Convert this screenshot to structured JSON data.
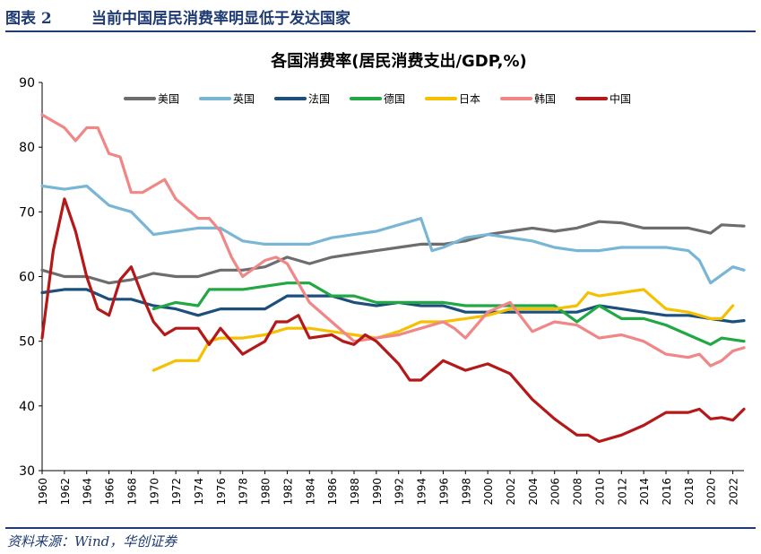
{
  "figure": {
    "label": "图表 2",
    "title": "当前中国居民消费率明显低于发达国家",
    "source": "资料来源：Wind，华创证券"
  },
  "chart_data": {
    "type": "line",
    "title": "各国消费率(居民消费支出/GDP,%)",
    "xlabel": "",
    "ylabel": "",
    "xlim": [
      1960,
      2023
    ],
    "ylim": [
      30,
      90
    ],
    "yticks": [
      30,
      40,
      50,
      60,
      70,
      80,
      90
    ],
    "xticks": [
      1960,
      1962,
      1964,
      1966,
      1968,
      1970,
      1972,
      1974,
      1976,
      1978,
      1980,
      1982,
      1984,
      1986,
      1988,
      1990,
      1992,
      1994,
      1996,
      1998,
      2000,
      2002,
      2004,
      2006,
      2008,
      2010,
      2012,
      2014,
      2016,
      2018,
      2020,
      2022
    ],
    "grid": false,
    "legend": "top",
    "series": [
      {
        "name": "美国",
        "color": "#6d6d6d",
        "x": [
          1960,
          1962,
          1964,
          1966,
          1968,
          1970,
          1972,
          1974,
          1976,
          1978,
          1980,
          1982,
          1984,
          1986,
          1988,
          1990,
          1992,
          1994,
          1996,
          1998,
          2000,
          2002,
          2004,
          2006,
          2008,
          2010,
          2012,
          2014,
          2016,
          2018,
          2020,
          2021,
          2023
        ],
        "y": [
          61,
          60,
          60,
          59,
          59.5,
          60.5,
          60,
          60,
          61,
          61,
          61.5,
          63,
          62,
          63,
          63.5,
          64,
          64.5,
          65,
          65,
          65.5,
          66.5,
          67,
          67.5,
          67,
          67.5,
          68.5,
          68.3,
          67.5,
          67.5,
          67.5,
          66.7,
          68,
          67.8
        ]
      },
      {
        "name": "英国",
        "color": "#79b6d6",
        "x": [
          1960,
          1962,
          1964,
          1966,
          1968,
          1970,
          1972,
          1974,
          1976,
          1978,
          1980,
          1982,
          1984,
          1986,
          1988,
          1990,
          1992,
          1994,
          1995,
          1996,
          1998,
          2000,
          2002,
          2004,
          2006,
          2008,
          2010,
          2012,
          2014,
          2016,
          2018,
          2019,
          2020,
          2022,
          2023
        ],
        "y": [
          74,
          73.5,
          74,
          71,
          70,
          66.5,
          67,
          67.5,
          67.5,
          65.5,
          65,
          65,
          65,
          66,
          66.5,
          67,
          68,
          69,
          64,
          64.5,
          66,
          66.5,
          66,
          65.5,
          64.5,
          64,
          64,
          64.5,
          64.5,
          64.5,
          64,
          62.5,
          59,
          61.5,
          61
        ]
      },
      {
        "name": "法国",
        "color": "#1c4f7c",
        "x": [
          1960,
          1962,
          1964,
          1966,
          1968,
          1970,
          1972,
          1974,
          1976,
          1978,
          1980,
          1982,
          1984,
          1986,
          1988,
          1990,
          1992,
          1994,
          1996,
          1998,
          2000,
          2002,
          2004,
          2006,
          2008,
          2010,
          2012,
          2014,
          2016,
          2018,
          2020,
          2022,
          2023
        ],
        "y": [
          57.5,
          58,
          58,
          56.5,
          56.5,
          55.5,
          55,
          54,
          55,
          55,
          55,
          57,
          57,
          57,
          56,
          55.5,
          56,
          55.5,
          55.5,
          54.5,
          54.5,
          54.5,
          54.5,
          54.5,
          54.5,
          55.5,
          55,
          54.5,
          54,
          54,
          53.5,
          53,
          53.2
        ]
      },
      {
        "name": "德国",
        "color": "#22a843",
        "x": [
          1970,
          1972,
          1974,
          1975,
          1976,
          1978,
          1980,
          1982,
          1984,
          1986,
          1988,
          1990,
          1992,
          1994,
          1996,
          1998,
          2000,
          2002,
          2004,
          2006,
          2008,
          2010,
          2012,
          2014,
          2016,
          2018,
          2020,
          2021,
          2023
        ],
        "y": [
          55,
          56,
          55.5,
          58,
          58,
          58,
          58.5,
          59,
          59,
          57,
          57,
          56,
          56,
          56,
          56,
          55.5,
          55.5,
          55.5,
          55.5,
          55.5,
          53,
          55.5,
          53.5,
          53.5,
          52.5,
          51,
          49.5,
          50.5,
          50
        ]
      },
      {
        "name": "日本",
        "color": "#f5c000",
        "x": [
          1970,
          1972,
          1974,
          1975,
          1976,
          1978,
          1980,
          1982,
          1984,
          1986,
          1988,
          1990,
          1992,
          1994,
          1996,
          1998,
          2000,
          2002,
          2004,
          2006,
          2008,
          2009,
          2010,
          2012,
          2014,
          2016,
          2018,
          2020,
          2021,
          2022
        ],
        "y": [
          45.5,
          47,
          47,
          50,
          50.5,
          50.5,
          51,
          52,
          52,
          51.5,
          51,
          50.5,
          51.5,
          53,
          53,
          53.5,
          54,
          55,
          55,
          55,
          55.5,
          57.5,
          57,
          57.5,
          58,
          55,
          54.5,
          53.5,
          53.5,
          55.5
        ]
      },
      {
        "name": "韩国",
        "color": "#f08686",
        "x": [
          1960,
          1962,
          1963,
          1964,
          1965,
          1966,
          1967,
          1968,
          1969,
          1970,
          1971,
          1972,
          1974,
          1975,
          1976,
          1977,
          1978,
          1980,
          1981,
          1982,
          1984,
          1986,
          1988,
          1990,
          1992,
          1994,
          1996,
          1997,
          1998,
          2000,
          2002,
          2004,
          2006,
          2008,
          2010,
          2012,
          2014,
          2016,
          2018,
          2019,
          2020,
          2021,
          2022,
          2023
        ],
        "y": [
          85,
          83,
          81,
          83,
          83,
          79,
          78.5,
          73,
          73,
          74,
          75,
          72,
          69,
          69,
          67,
          63,
          60,
          62.5,
          63,
          62,
          56,
          53,
          50,
          50.5,
          51,
          52,
          53,
          52,
          50.5,
          54.5,
          56,
          51.5,
          53,
          52.5,
          50.5,
          51,
          50,
          48,
          47.5,
          48,
          46.2,
          47,
          48.5,
          49
        ]
      },
      {
        "name": "中国",
        "color": "#b51818",
        "x": [
          1960,
          1961,
          1962,
          1963,
          1964,
          1965,
          1966,
          1967,
          1968,
          1969,
          1970,
          1971,
          1972,
          1974,
          1975,
          1976,
          1977,
          1978,
          1979,
          1980,
          1981,
          1982,
          1983,
          1984,
          1986,
          1987,
          1988,
          1989,
          1990,
          1992,
          1993,
          1994,
          1996,
          1998,
          2000,
          2002,
          2004,
          2006,
          2008,
          2009,
          2010,
          2012,
          2014,
          2016,
          2018,
          2019,
          2020,
          2021,
          2022,
          2023
        ],
        "y": [
          50.5,
          64,
          72,
          67,
          60,
          55,
          54,
          59.5,
          61.5,
          57,
          53,
          51,
          52,
          52,
          49.5,
          52,
          50,
          48,
          49,
          50,
          53,
          53,
          54,
          50.5,
          51,
          50,
          49.5,
          51,
          50,
          46.5,
          44,
          44,
          47,
          45.5,
          46.5,
          45,
          41,
          38,
          35.5,
          35.5,
          34.5,
          35.5,
          37,
          39,
          39,
          39.5,
          38,
          38.2,
          37.8,
          39.5
        ]
      }
    ]
  }
}
